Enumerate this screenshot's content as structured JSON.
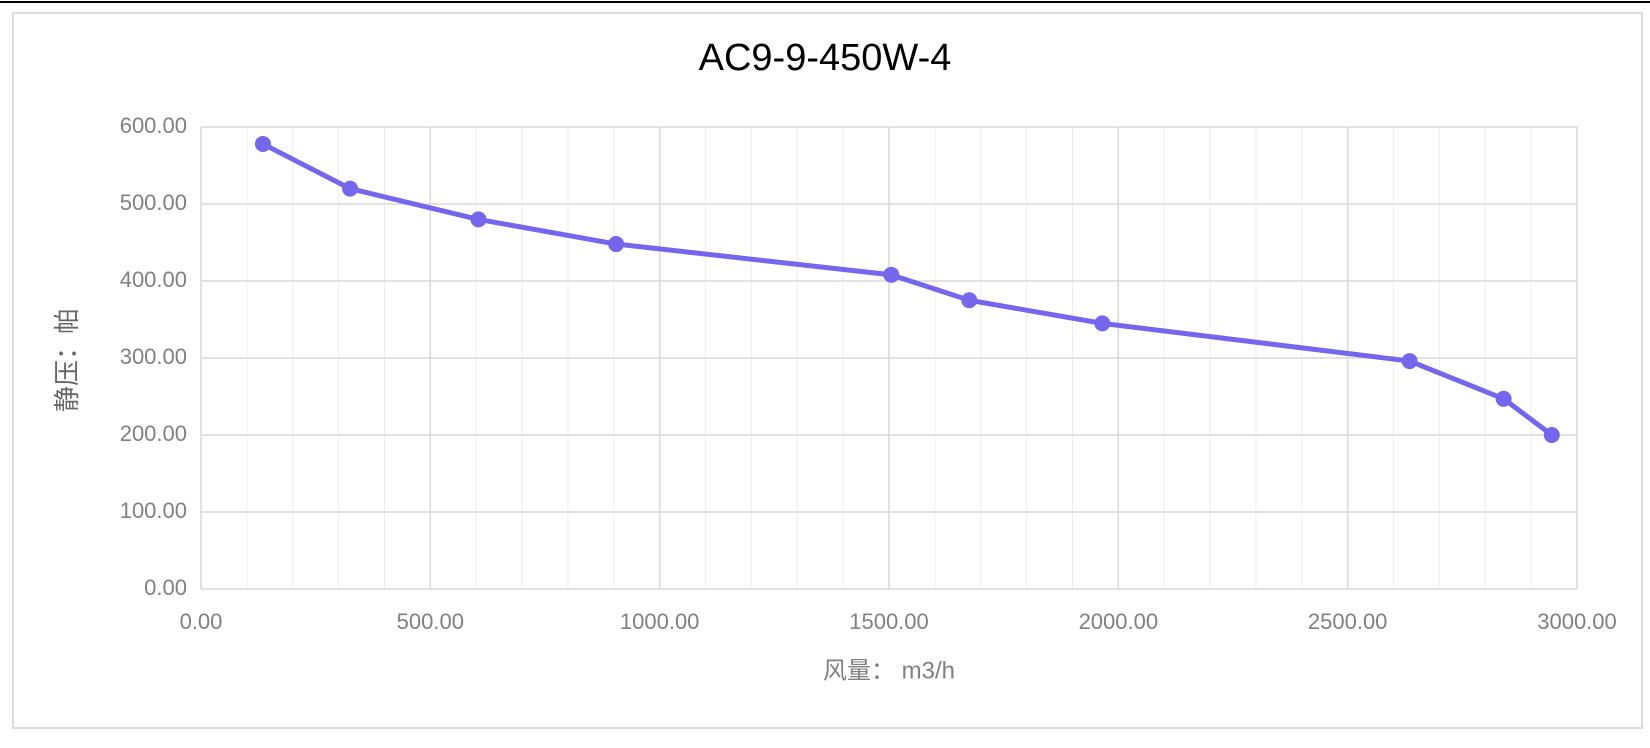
{
  "chart_data": {
    "type": "line",
    "title": "AC9-9-450W-4",
    "x_label": "风量： m3/h",
    "y_label": "静压：帕",
    "x": [
      135,
      325,
      605,
      905,
      1505,
      1675,
      1965,
      2635,
      2840,
      2945
    ],
    "values": [
      578,
      520,
      480,
      448,
      408,
      375,
      345,
      296,
      247,
      200
    ],
    "color": "#7566ee",
    "xlim": [
      0,
      3000
    ],
    "xticks": [
      {
        "value": 0,
        "label": "0.00"
      },
      {
        "value": 500,
        "label": "500.00"
      },
      {
        "value": 1000,
        "label": "1000.00"
      },
      {
        "value": 1500,
        "label": "1500.00"
      },
      {
        "value": 2000,
        "label": "2000.00"
      },
      {
        "value": 2500,
        "label": "2500.00"
      },
      {
        "value": 3000,
        "label": "3000.00"
      }
    ],
    "ylim": [
      0,
      600
    ],
    "yticks": [
      {
        "value": 0,
        "label": "0.00"
      },
      {
        "value": 100,
        "label": "100.00"
      },
      {
        "value": 200,
        "label": "200.00"
      },
      {
        "value": 300,
        "label": "300.00"
      },
      {
        "value": 400,
        "label": "400.00"
      },
      {
        "value": 500,
        "label": "500.00"
      },
      {
        "value": 600,
        "label": "600.00"
      }
    ],
    "grid": true,
    "minor_x_grid": true
  }
}
